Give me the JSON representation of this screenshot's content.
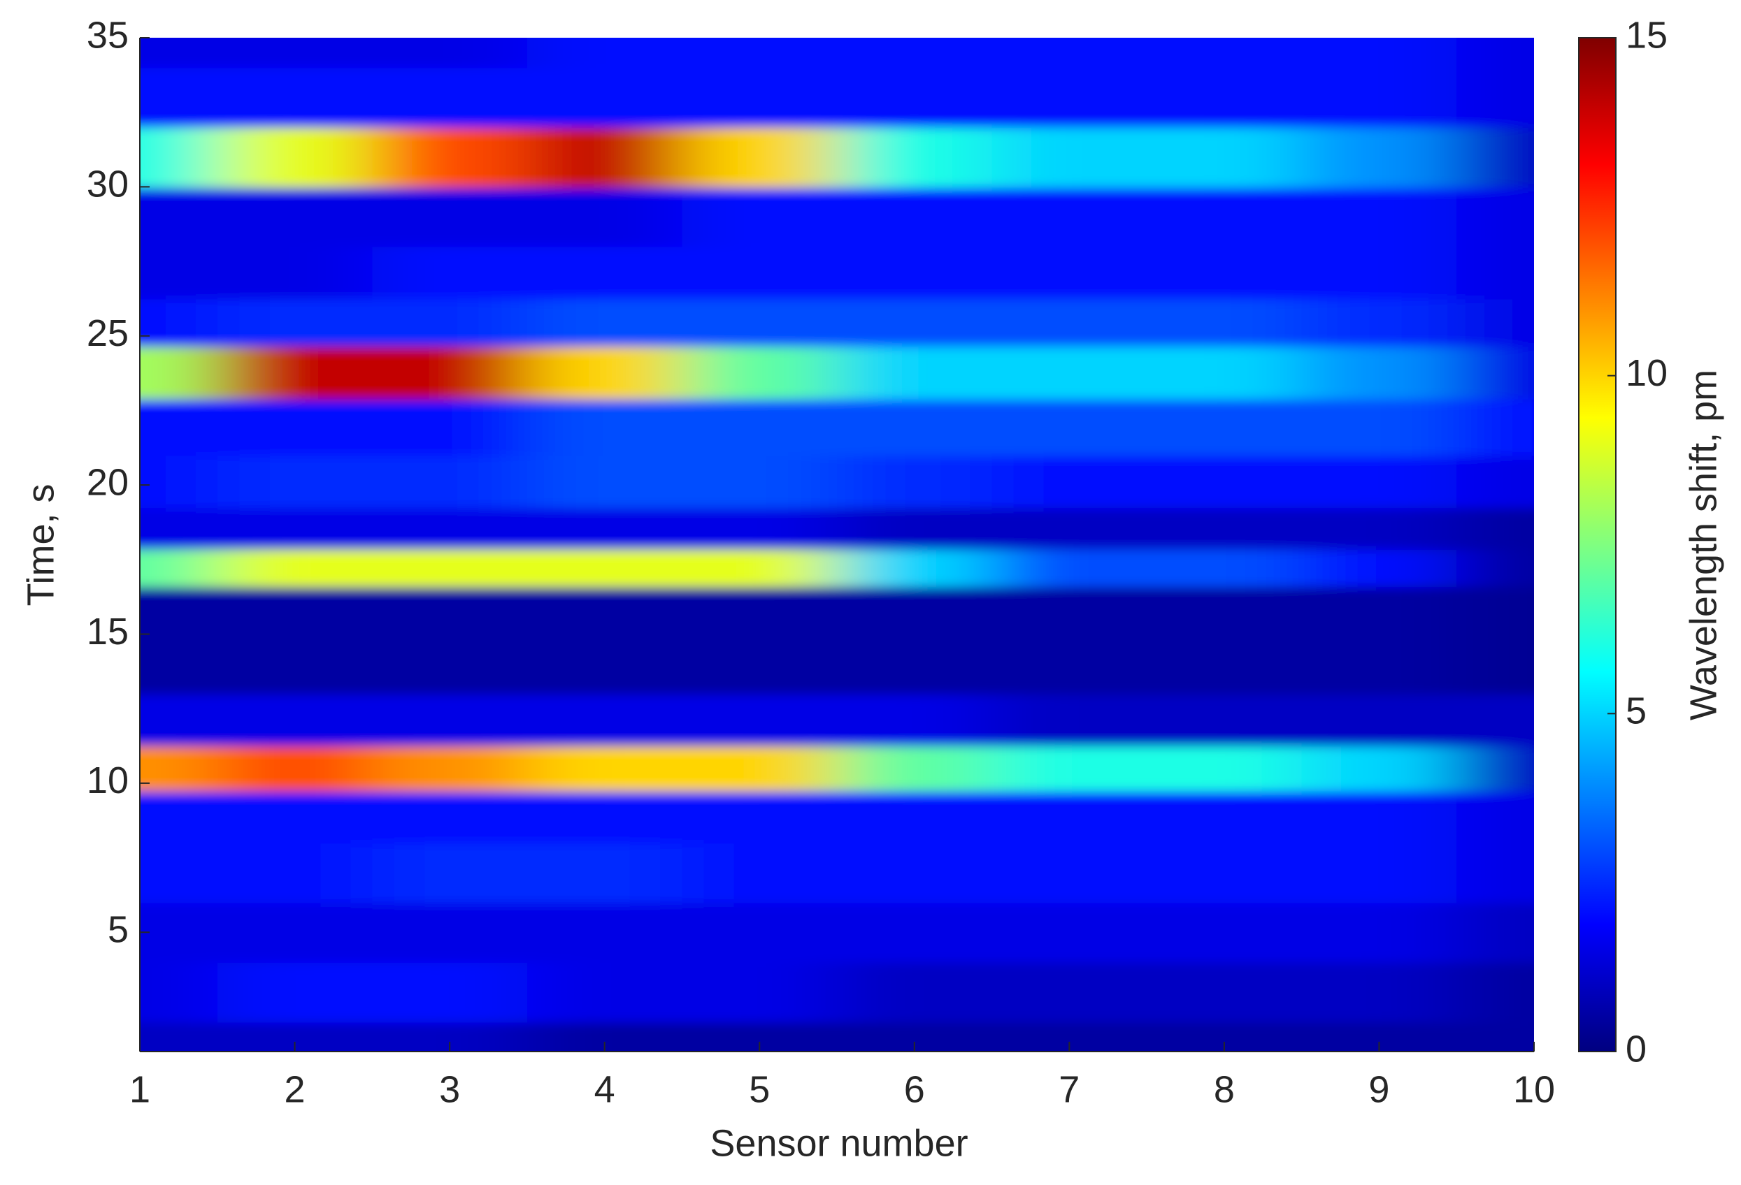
{
  "chart_data": {
    "type": "heatmap",
    "x_label": "Sensor number",
    "y_label": "Time, s",
    "colorbar_label": "Wavelength shift, pm",
    "x": [
      1,
      2,
      3,
      4,
      5,
      6,
      7,
      8,
      9,
      10
    ],
    "y": [
      1,
      3,
      5,
      7,
      9,
      10.5,
      12,
      14,
      16,
      17.2,
      18.5,
      20,
      22,
      23.8,
      25.5,
      27,
      29,
      31,
      33,
      35
    ],
    "values": [
      [
        1,
        1,
        1,
        0.5,
        0.5,
        0.5,
        0.5,
        0.5,
        0.5,
        0.5
      ],
      [
        1.5,
        2,
        2,
        1.5,
        1.5,
        1,
        1,
        1,
        1,
        0.5
      ],
      [
        1.5,
        1.5,
        1.5,
        1.5,
        1.5,
        1.5,
        1.5,
        1.5,
        1.5,
        1
      ],
      [
        2,
        2,
        2.5,
        2.5,
        2,
        2,
        2,
        2,
        2,
        1.5
      ],
      [
        2,
        2,
        2,
        2,
        2,
        2,
        2,
        2,
        2,
        1.5
      ],
      [
        11,
        12,
        11,
        10,
        10,
        7,
        6,
        6,
        5,
        1
      ],
      [
        1.5,
        1.5,
        1.5,
        1.5,
        1.5,
        1.5,
        1,
        1,
        1,
        1
      ],
      [
        0.5,
        0.5,
        0.5,
        0.5,
        0.5,
        0.5,
        0.5,
        0.5,
        0.5,
        0.3
      ],
      [
        0.5,
        0.5,
        0.5,
        0.5,
        0.5,
        0.5,
        0.5,
        0.5,
        0.5,
        0.3
      ],
      [
        7,
        9,
        9,
        9,
        9,
        5,
        3,
        3,
        2,
        0.5
      ],
      [
        1.5,
        1.5,
        1.5,
        1.5,
        1.5,
        1,
        1,
        1,
        1,
        0.5
      ],
      [
        2,
        2.5,
        2.5,
        3,
        3,
        2.5,
        2,
        2,
        2,
        1.5
      ],
      [
        2,
        2,
        2,
        3,
        3,
        3,
        3,
        3,
        3,
        2
      ],
      [
        8,
        14,
        14,
        10,
        7,
        5,
        5,
        5,
        4,
        1.5
      ],
      [
        2,
        2.5,
        2.5,
        3,
        3,
        3,
        3,
        3,
        2.5,
        1.5
      ],
      [
        1.5,
        1.5,
        2,
        2,
        2,
        2,
        2,
        2,
        2,
        1.5
      ],
      [
        1.5,
        1.5,
        1.5,
        1.5,
        2,
        2,
        2,
        2,
        2,
        1.5
      ],
      [
        6,
        9,
        12,
        14,
        10,
        6,
        5,
        5,
        4,
        1
      ],
      [
        2,
        2,
        2,
        2,
        2,
        2,
        2,
        2,
        2,
        1.5
      ],
      [
        1.5,
        1.5,
        1.5,
        2,
        2,
        2,
        2,
        2,
        2,
        1.5
      ]
    ],
    "colormap": "jet",
    "xlim": [
      1,
      10
    ],
    "xticks": [
      1,
      2,
      3,
      4,
      5,
      6,
      7,
      8,
      9,
      10
    ],
    "ylim": [
      1,
      35
    ],
    "yticks": [
      5,
      10,
      15,
      20,
      25,
      30,
      35
    ],
    "zlim": [
      0,
      15
    ],
    "zticks": [
      0,
      5,
      10,
      15
    ]
  }
}
